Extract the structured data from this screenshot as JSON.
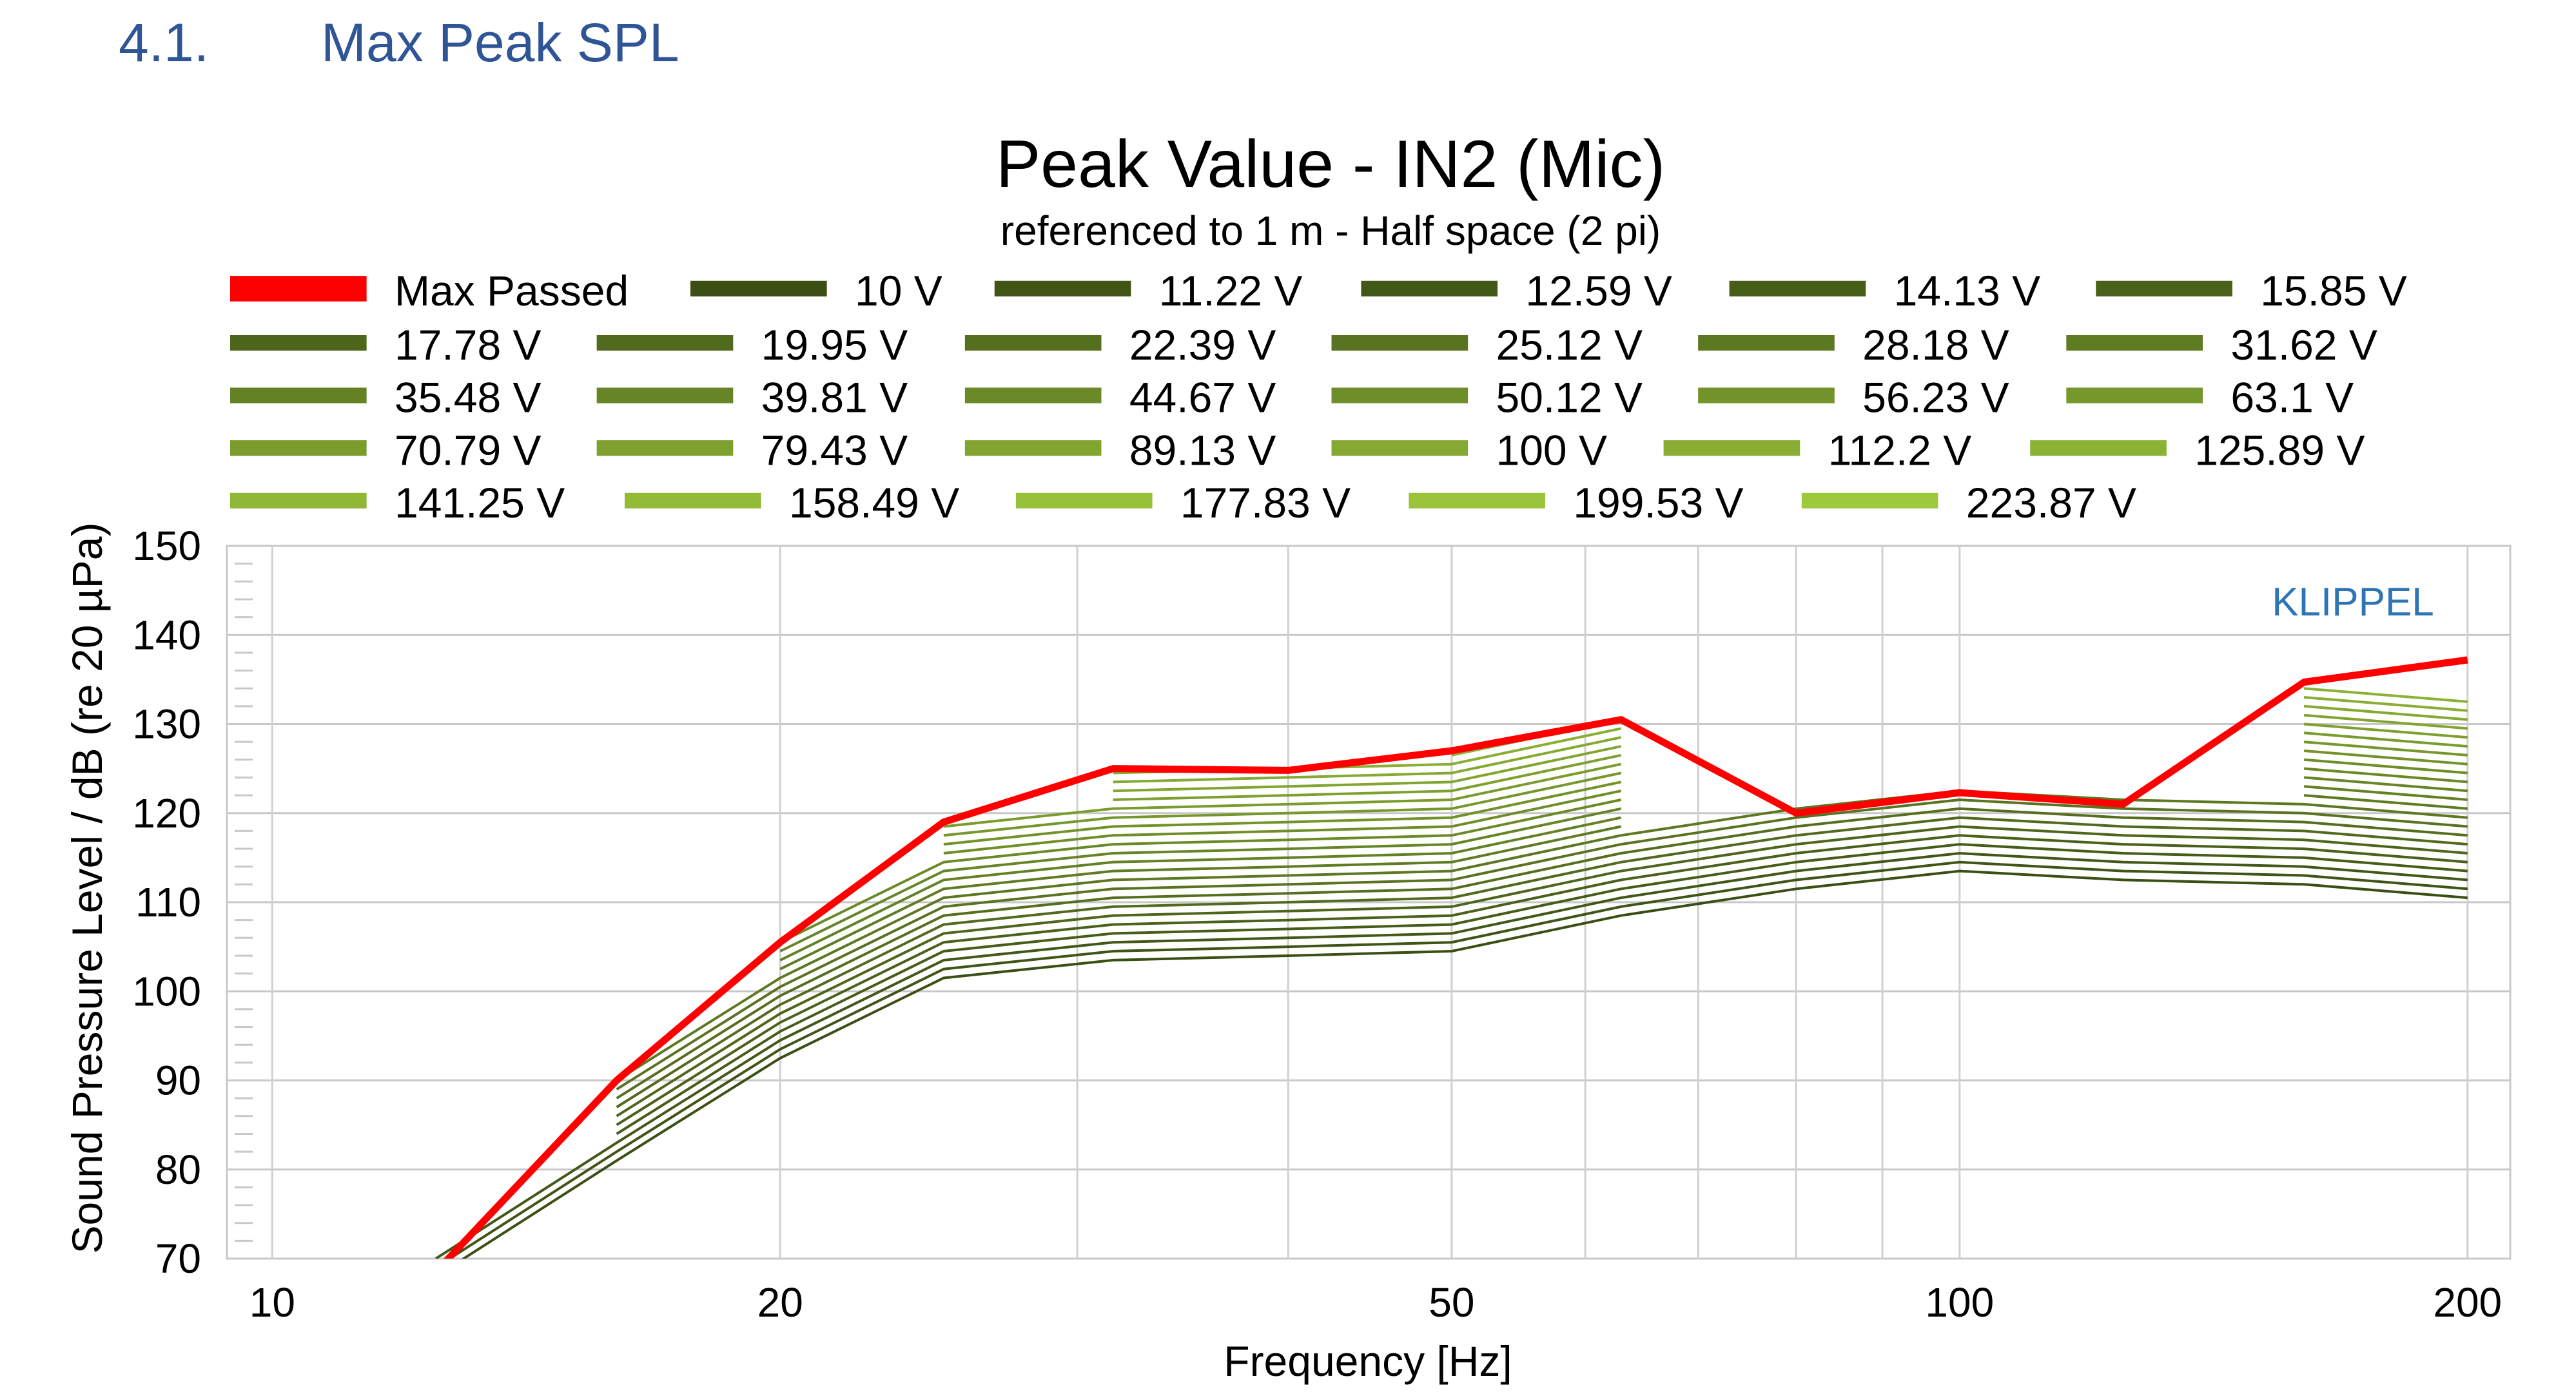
{
  "section": {
    "number": "4.1.",
    "title": "Max Peak SPL"
  },
  "chart_data": {
    "type": "line",
    "title": "Peak Value - IN2 (Mic)",
    "subtitle": "referenced to 1 m - Half space (2 pi)",
    "xlabel": "Frequency [Hz]",
    "ylabel": "Sound Pressure Level / dB (re 20 µPa)",
    "watermark": "KLIPPEL",
    "x_scale": "log",
    "xlim": [
      9.4,
      212
    ],
    "ylim": [
      70,
      150
    ],
    "grid": true,
    "legend_placement": "top",
    "x_ticks": [
      10,
      20,
      50,
      100,
      200
    ],
    "x_tick_labels": [
      "10",
      "20",
      "50",
      "100",
      "200"
    ],
    "x_grid": [
      10,
      20,
      30,
      40,
      50,
      60,
      70,
      80,
      90,
      100,
      200
    ],
    "y_ticks": [
      70,
      80,
      90,
      100,
      110,
      120,
      130,
      140,
      150
    ],
    "y_tick_labels": [
      "70",
      "80",
      "90",
      "100",
      "110",
      "120",
      "130",
      "140",
      "150"
    ],
    "x": [
      12.5,
      16,
      20,
      25,
      31.5,
      40,
      50,
      63,
      80,
      100,
      125,
      160,
      200
    ],
    "colors": {
      "max": "#ff0000",
      "dark": "#3b4f14",
      "light": "#9fc93c",
      "grid": "#c8c8c8",
      "watermark": "#2e75b6"
    },
    "max_series": {
      "name": "Max Passed",
      "values": [
        68.5,
        90,
        105.5,
        119,
        125,
        124.8,
        127,
        130.5,
        120,
        122.3,
        121,
        134.7,
        137.2
      ]
    },
    "series": [
      {
        "name": "10 V",
        "values": [
          68,
          81,
          92.5,
          101.5,
          103.5,
          104,
          104.5,
          108.5,
          111.5,
          113.5,
          112.5,
          112,
          110.5
        ]
      },
      {
        "name": "11.22 V",
        "values": [
          69,
          82,
          93.5,
          102.5,
          104.5,
          105,
          105.5,
          109.5,
          112.5,
          114.5,
          113.5,
          113,
          111.5
        ]
      },
      {
        "name": "12.59 V",
        "values": [
          70,
          83,
          94.5,
          103.5,
          105.5,
          106,
          106.5,
          110.5,
          113.5,
          115.5,
          114.5,
          114,
          112.5
        ]
      },
      {
        "name": "14.13 V",
        "values": [
          null,
          84,
          95.5,
          104.5,
          106.5,
          107,
          107.5,
          111.5,
          114.5,
          116.5,
          115.5,
          115,
          113.5
        ]
      },
      {
        "name": "15.85 V",
        "values": [
          null,
          85,
          96.5,
          105.5,
          107.5,
          108,
          108.5,
          112.5,
          115.5,
          117.5,
          116.5,
          116,
          114.5
        ]
      },
      {
        "name": "17.78 V",
        "values": [
          null,
          86,
          97.5,
          106.5,
          108.5,
          109,
          109.5,
          113.5,
          116.5,
          118.5,
          117.5,
          117,
          115.5
        ]
      },
      {
        "name": "19.95 V",
        "values": [
          null,
          87,
          98.5,
          107.5,
          109.5,
          110,
          110.5,
          114.5,
          117.5,
          119.5,
          118.5,
          118,
          116.5
        ]
      },
      {
        "name": "22.39 V",
        "values": [
          null,
          88,
          99.5,
          108.5,
          110.5,
          111,
          111.5,
          115.5,
          118.5,
          120.5,
          119.5,
          119,
          117.5
        ]
      },
      {
        "name": "25.12 V",
        "values": [
          null,
          89,
          100.5,
          109.5,
          111.5,
          112,
          112.5,
          116.5,
          119.5,
          121.5,
          120.5,
          120,
          118.5
        ]
      },
      {
        "name": "28.18 V",
        "values": [
          null,
          90,
          101.5,
          110.5,
          112.5,
          113,
          113.5,
          117.5,
          120.5,
          122.5,
          121.5,
          121,
          119.5
        ]
      },
      {
        "name": "31.62 V",
        "values": [
          null,
          null,
          102.5,
          111.5,
          113.5,
          114,
          114.5,
          118.5,
          null,
          null,
          null,
          122,
          120.5
        ]
      },
      {
        "name": "35.48 V",
        "values": [
          null,
          null,
          103.5,
          112.5,
          114.5,
          115,
          115.5,
          119.5,
          null,
          null,
          null,
          123,
          121.5
        ]
      },
      {
        "name": "39.81 V",
        "values": [
          null,
          null,
          104.5,
          113.5,
          115.5,
          116,
          116.5,
          120.5,
          null,
          null,
          null,
          124,
          122.5
        ]
      },
      {
        "name": "44.67 V",
        "values": [
          null,
          null,
          105.5,
          114.5,
          116.5,
          117,
          117.5,
          121.5,
          null,
          null,
          null,
          125,
          123.5
        ]
      },
      {
        "name": "50.12 V",
        "values": [
          null,
          null,
          null,
          115.5,
          117.5,
          118,
          118.5,
          122.5,
          null,
          null,
          null,
          126,
          124.5
        ]
      },
      {
        "name": "56.23 V",
        "values": [
          null,
          null,
          null,
          116.5,
          118.5,
          119,
          119.5,
          123.5,
          null,
          null,
          null,
          127,
          125.5
        ]
      },
      {
        "name": "63.1 V",
        "values": [
          null,
          null,
          null,
          117.5,
          119.5,
          120,
          120.5,
          124.5,
          null,
          null,
          null,
          128,
          126.5
        ]
      },
      {
        "name": "70.79 V",
        "values": [
          null,
          null,
          null,
          118.5,
          120.5,
          121,
          121.5,
          125.5,
          null,
          null,
          null,
          129,
          127.5
        ]
      },
      {
        "name": "79.43 V",
        "values": [
          null,
          null,
          null,
          null,
          121.5,
          122,
          122.5,
          126.5,
          null,
          null,
          null,
          130,
          128.5
        ]
      },
      {
        "name": "89.13 V",
        "values": [
          null,
          null,
          null,
          null,
          122.5,
          123,
          123.5,
          127.5,
          null,
          null,
          null,
          131,
          129.5
        ]
      },
      {
        "name": "100 V",
        "values": [
          null,
          null,
          null,
          null,
          123.5,
          124,
          124.5,
          128.5,
          null,
          null,
          null,
          132,
          130.5
        ]
      },
      {
        "name": "112.2 V",
        "values": [
          null,
          null,
          null,
          null,
          124.5,
          125,
          125.5,
          129.5,
          null,
          null,
          null,
          133,
          131.5
        ]
      },
      {
        "name": "125.89 V",
        "values": [
          null,
          null,
          null,
          null,
          null,
          null,
          126.5,
          130.5,
          null,
          null,
          null,
          134,
          132.5
        ]
      },
      {
        "name": "141.25 V",
        "values": [
          null,
          null,
          null,
          null,
          null,
          null,
          null,
          null,
          null,
          null,
          null,
          null,
          133.5
        ]
      },
      {
        "name": "158.49 V",
        "values": [
          null,
          null,
          null,
          null,
          null,
          null,
          null,
          null,
          null,
          null,
          null,
          null,
          134.5
        ]
      },
      {
        "name": "177.83 V",
        "values": [
          null,
          null,
          null,
          null,
          null,
          null,
          null,
          null,
          null,
          null,
          null,
          null,
          135.5
        ]
      },
      {
        "name": "199.53 V",
        "values": [
          null,
          null,
          null,
          null,
          null,
          null,
          null,
          null,
          null,
          null,
          null,
          null,
          136
        ]
      },
      {
        "name": "223.87 V",
        "values": [
          null,
          null,
          null,
          null,
          null,
          null,
          null,
          null,
          null,
          null,
          null,
          null,
          null
        ]
      }
    ]
  }
}
